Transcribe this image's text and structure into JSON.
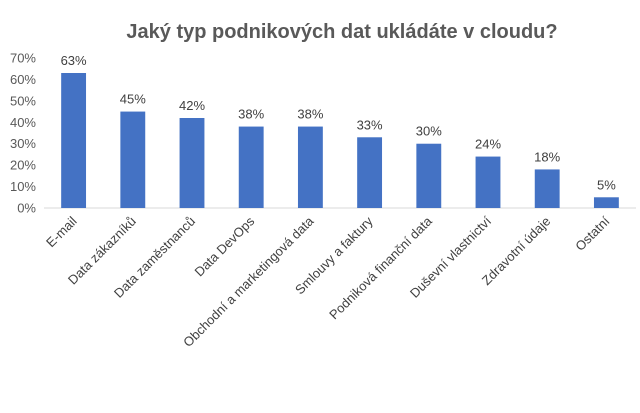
{
  "chart_data": {
    "type": "bar",
    "title": "Jaký typ podnikových dat ukládáte v cloudu?",
    "xlabel": "",
    "ylabel": "",
    "categories": [
      "E-mail",
      "Data zákazníků",
      "Data zaměstnanců",
      "Data DevOps",
      "Obchodní a marketingová data",
      "Smlouvy a faktury",
      "Podniková finanční data",
      "Duševní vlastnictví",
      "Zdravotní údaje",
      "Ostatní"
    ],
    "values": [
      63,
      45,
      42,
      38,
      38,
      33,
      30,
      24,
      18,
      5
    ],
    "data_labels": [
      "63%",
      "45%",
      "42%",
      "38%",
      "38%",
      "33%",
      "30%",
      "24%",
      "18%",
      "5%"
    ],
    "y_ticks": [
      0,
      10,
      20,
      30,
      40,
      50,
      60,
      70
    ],
    "y_tick_labels": [
      "0%",
      "10%",
      "20%",
      "30%",
      "40%",
      "50%",
      "60%",
      "70%"
    ],
    "ylim": [
      0,
      70
    ],
    "grid": false,
    "legend": "none",
    "colors": {
      "bar": "#4472C4",
      "text": "#595959",
      "axis": "#D9D9D9"
    }
  }
}
